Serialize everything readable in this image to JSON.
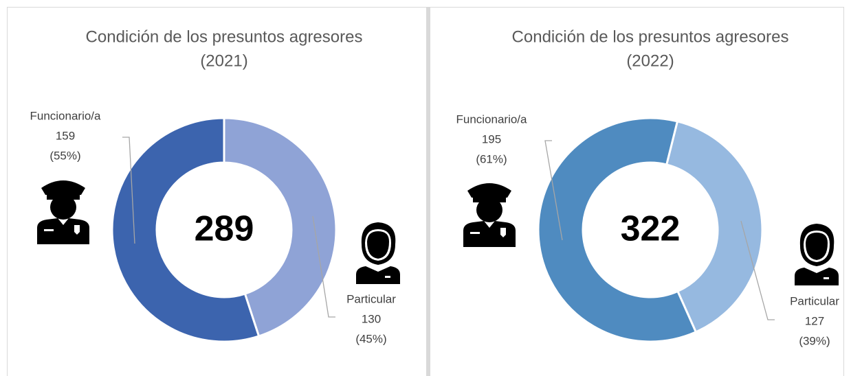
{
  "chart_data": [
    {
      "type": "donut",
      "title": "Condición de los presuntos agresores",
      "subtitle": "(2021)",
      "total": 289,
      "categories": [
        "Funcionario/a",
        "Particular"
      ],
      "values": [
        159,
        130
      ],
      "percent_labels": [
        "(55%)",
        "(45%)"
      ],
      "colors": [
        "#3c64ae",
        "#8fa3d6"
      ]
    },
    {
      "type": "donut",
      "title": "Condición de los presuntos agresores",
      "subtitle": "(2022)",
      "total": 322,
      "categories": [
        "Funcionario/a",
        "Particular"
      ],
      "values": [
        195,
        127
      ],
      "percent_labels": [
        "(61%)",
        "(39%)"
      ],
      "colors": [
        "#4f8bc0",
        "#96b9e0"
      ]
    }
  ]
}
